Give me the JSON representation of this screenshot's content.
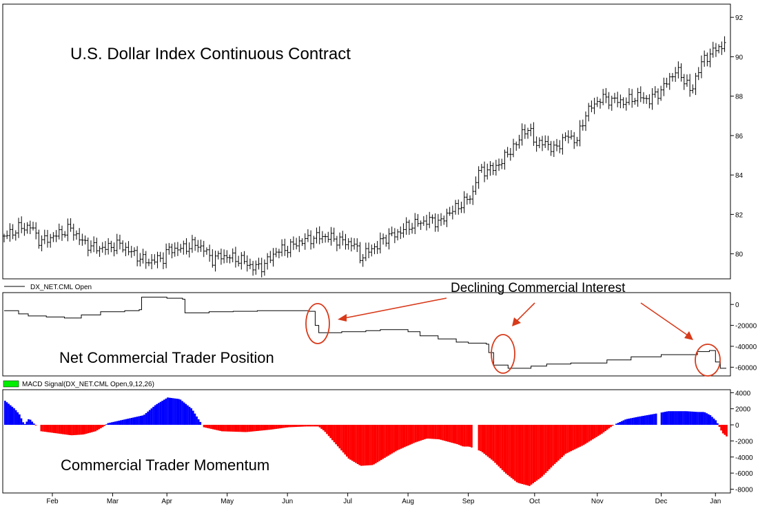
{
  "chart_data": [
    {
      "type": "ohlc",
      "title": "U.S. Dollar Index Continuous Contract",
      "ylim": [
        78.8,
        92.6
      ],
      "y_ticks": [
        80,
        82,
        84,
        86,
        88,
        90,
        92
      ],
      "x_months": [
        "Feb",
        "Mar",
        "Apr",
        "May",
        "Jun",
        "Jul",
        "Aug",
        "Sep",
        "Oct",
        "Nov",
        "Dec",
        "Jan"
      ],
      "series": [
        {
          "values": [
            [
              1,
              80.9
            ],
            [
              12,
              81.3
            ],
            [
              22,
              81.4
            ],
            [
              30,
              80.6
            ],
            [
              45,
              81.0
            ],
            [
              55,
              81.3
            ],
            [
              65,
              80.6
            ],
            [
              75,
              80.3
            ],
            [
              85,
              80.3
            ],
            [
              95,
              80.5
            ],
            [
              105,
              80.1
            ],
            [
              115,
              79.7
            ],
            [
              120,
              79.6
            ],
            [
              132,
              79.8
            ],
            [
              136,
              80.2
            ],
            [
              150,
              80.3
            ],
            [
              158,
              80.5
            ],
            [
              165,
              80.3
            ],
            [
              172,
              79.7
            ],
            [
              180,
              79.9
            ],
            [
              190,
              79.8
            ],
            [
              200,
              79.6
            ],
            [
              206,
              79.3
            ],
            [
              215,
              79.4
            ],
            [
              225,
              80.1
            ],
            [
              235,
              80.3
            ],
            [
              245,
              80.6
            ],
            [
              255,
              80.8
            ],
            [
              265,
              80.9
            ],
            [
              272,
              80.8
            ],
            [
              282,
              80.6
            ],
            [
              290,
              80.5
            ],
            [
              296,
              79.8
            ],
            [
              305,
              80.3
            ],
            [
              310,
              80.4
            ],
            [
              315,
              80.8
            ],
            [
              325,
              81.0
            ],
            [
              335,
              81.4
            ],
            [
              345,
              81.6
            ],
            [
              355,
              81.7
            ],
            [
              363,
              81.6
            ],
            [
              368,
              82.1
            ],
            [
              375,
              82.3
            ],
            [
              380,
              82.6
            ],
            [
              388,
              82.9
            ],
            [
              392,
              84.0
            ],
            [
              395,
              84.2
            ],
            [
              405,
              84.3
            ],
            [
              413,
              84.7
            ],
            [
              420,
              85.3
            ],
            [
              425,
              85.5
            ],
            [
              430,
              86.3
            ],
            [
              438,
              86.1
            ],
            [
              442,
              85.5
            ],
            [
              450,
              85.7
            ],
            [
              455,
              85.2
            ],
            [
              462,
              85.7
            ],
            [
              468,
              86.0
            ],
            [
              475,
              85.7
            ],
            [
              478,
              86.3
            ],
            [
              482,
              87.1
            ],
            [
              488,
              87.5
            ],
            [
              495,
              87.9
            ],
            [
              505,
              87.8
            ],
            [
              515,
              87.7
            ],
            [
              525,
              88.0
            ],
            [
              535,
              87.8
            ],
            [
              545,
              88.3
            ],
            [
              552,
              88.9
            ],
            [
              557,
              89.3
            ],
            [
              562,
              89.0
            ],
            [
              566,
              88.7
            ],
            [
              570,
              88.1
            ],
            [
              575,
              89.3
            ],
            [
              580,
              89.8
            ],
            [
              586,
              90.2
            ],
            [
              591,
              90.4
            ],
            [
              596,
              90.5
            ],
            [
              599,
              91.2
            ]
          ]
        }
      ]
    },
    {
      "type": "line",
      "legend": "DX_NET.CML Open",
      "annotation_title": "Net Commercial Trader Position",
      "ylim": [
        -67000,
        10000
      ],
      "y_ticks": [
        0,
        -20000,
        -40000,
        -60000
      ],
      "y_tick_labels": [
        "0",
        "-20000",
        "-40000",
        "-60000"
      ],
      "series": [
        {
          "values": [
            [
              0,
              -6000
            ],
            [
              12,
              -9000
            ],
            [
              20,
              -11000
            ],
            [
              35,
              -12000
            ],
            [
              50,
              -13000
            ],
            [
              62,
              -13000
            ],
            [
              64,
              -10000
            ],
            [
              80,
              -7000
            ],
            [
              100,
              -6000
            ],
            [
              112,
              -5000
            ],
            [
              114,
              7000
            ],
            [
              122,
              7000
            ],
            [
              135,
              6000
            ],
            [
              148,
              5000
            ],
            [
              150,
              -8000
            ],
            [
              170,
              -7000
            ],
            [
              190,
              -6500
            ],
            [
              210,
              -6000
            ],
            [
              230,
              -6000
            ],
            [
              250,
              -6000
            ],
            [
              253,
              -6500
            ],
            [
              258,
              -20000
            ],
            [
              261,
              -27000
            ],
            [
              280,
              -26000
            ],
            [
              300,
              -25000
            ],
            [
              312,
              -24000
            ],
            [
              322,
              -24000
            ],
            [
              335,
              -26000
            ],
            [
              345,
              -30000
            ],
            [
              360,
              -33000
            ],
            [
              375,
              -36000
            ],
            [
              385,
              -37000
            ],
            [
              396,
              -37000
            ],
            [
              400,
              -38000
            ],
            [
              402,
              -46000
            ],
            [
              406,
              -58000
            ],
            [
              418,
              -61000
            ],
            [
              435,
              -61000
            ],
            [
              437,
              -59000
            ],
            [
              450,
              -57000
            ],
            [
              470,
              -56000
            ],
            [
              490,
              -56000
            ],
            [
              500,
              -53000
            ],
            [
              520,
              -50000
            ],
            [
              545,
              -48000
            ],
            [
              563,
              -48000
            ],
            [
              575,
              -45000
            ],
            [
              585,
              -44000
            ],
            [
              590,
              -55000
            ],
            [
              594,
              -61000
            ],
            [
              599,
              -61000
            ]
          ]
        }
      ]
    },
    {
      "type": "bar",
      "legend": "MACD Signal(DX_NET.CML Open,9,12,26)",
      "annotation_title": "Commercial Trader Momentum",
      "ylim": [
        -8300,
        4200
      ],
      "y_ticks": [
        4000,
        2000,
        0,
        -2000,
        -4000,
        -6000,
        -8000
      ],
      "y_tick_labels": [
        "4000",
        "2000",
        "0",
        "-2000",
        "-4000",
        "-6000",
        "-8000"
      ],
      "series": [
        {
          "values": [
            [
              0,
              3000
            ],
            [
              8,
              2000
            ],
            [
              12,
              1300
            ],
            [
              16,
              0
            ],
            [
              20,
              800
            ],
            [
              25,
              0
            ],
            [
              30,
              -800
            ],
            [
              45,
              -1100
            ],
            [
              55,
              -1300
            ],
            [
              65,
              -1200
            ],
            [
              75,
              -800
            ],
            [
              82,
              -200
            ],
            [
              85,
              200
            ],
            [
              100,
              700
            ],
            [
              115,
              1200
            ],
            [
              125,
              2500
            ],
            [
              135,
              3400
            ],
            [
              145,
              3200
            ],
            [
              155,
              2000
            ],
            [
              160,
              800
            ],
            [
              165,
              -300
            ],
            [
              180,
              -800
            ],
            [
              200,
              -900
            ],
            [
              220,
              -600
            ],
            [
              235,
              -300
            ],
            [
              250,
              -200
            ],
            [
              260,
              -200
            ],
            [
              265,
              -800
            ],
            [
              275,
              -2500
            ],
            [
              285,
              -4200
            ],
            [
              295,
              -5100
            ],
            [
              305,
              -5000
            ],
            [
              315,
              -4100
            ],
            [
              325,
              -3200
            ],
            [
              340,
              -2200
            ],
            [
              350,
              -1700
            ],
            [
              360,
              -1800
            ],
            [
              375,
              -2400
            ],
            [
              380,
              -2700
            ],
            [
              385,
              -2700
            ],
            [
              395,
              -3300
            ],
            [
              405,
              -4500
            ],
            [
              415,
              -6000
            ],
            [
              425,
              -7200
            ],
            [
              435,
              -7600
            ],
            [
              445,
              -6500
            ],
            [
              455,
              -5000
            ],
            [
              465,
              -3600
            ],
            [
              480,
              -2500
            ],
            [
              495,
              -1100
            ],
            [
              505,
              0
            ],
            [
              515,
              700
            ],
            [
              525,
              1000
            ],
            [
              540,
              1400
            ],
            [
              550,
              1700
            ],
            [
              565,
              1700
            ],
            [
              575,
              1600
            ],
            [
              580,
              1600
            ],
            [
              585,
              1200
            ],
            [
              590,
              500
            ],
            [
              595,
              -1000
            ],
            [
              599,
              -1500
            ]
          ]
        }
      ]
    }
  ],
  "annotations": {
    "arrow_label": "Declining Commercial Interest",
    "legend_swatch_color": "#00ee00"
  },
  "colors": {
    "positive": "#0000ff",
    "negative": "#ff0000",
    "annotation": "#d83a1a",
    "line": "#000000"
  }
}
